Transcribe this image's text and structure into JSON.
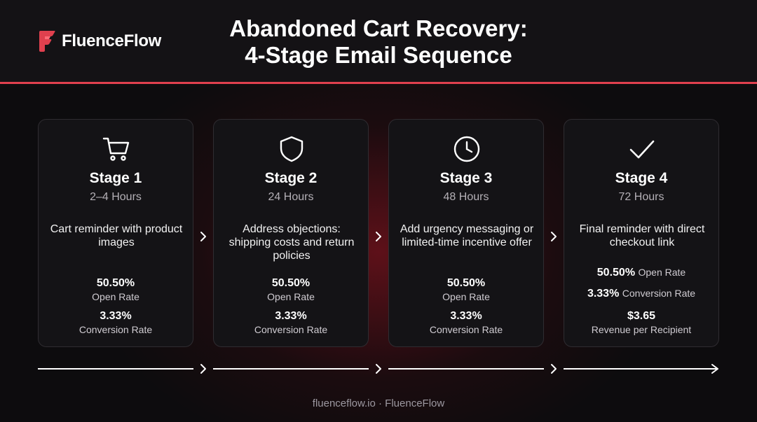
{
  "brand": {
    "name": "FluenceFlow",
    "accent": "#e0404e"
  },
  "title": {
    "line1": "Abandoned Cart Recovery:",
    "line2": "4-Stage Email Sequence"
  },
  "stages": [
    {
      "icon": "shopping-cart-icon",
      "label": "Stage 1",
      "timing": "2–4 Hours",
      "description": "Cart reminder with product images",
      "open_rate": "50.50%",
      "open_rate_label": "Open Rate",
      "conversion_rate": "3.33%",
      "conversion_rate_label": "Conversion Rate"
    },
    {
      "icon": "shield-icon",
      "label": "Stage 2",
      "timing": "24 Hours",
      "description": "Address objections: shipping costs and return policies",
      "open_rate": "50.50%",
      "open_rate_label": "Open Rate",
      "conversion_rate": "3.33%",
      "conversion_rate_label": "Conversion Rate"
    },
    {
      "icon": "clock-icon",
      "label": "Stage 3",
      "timing": "48 Hours",
      "description": "Add urgency messaging or limited-time incentive offer",
      "open_rate": "50.50%",
      "open_rate_label": "Open Rate",
      "conversion_rate": "3.33%",
      "conversion_rate_label": "Conversion Rate"
    },
    {
      "icon": "checkmark-icon",
      "label": "Stage 4",
      "timing": "72 Hours",
      "description": "Final reminder with direct checkout link",
      "open_rate": "50.50%",
      "open_rate_label": "Open Rate",
      "conversion_rate": "3.33%",
      "conversion_rate_label": "Conversion Rate",
      "revenue": "$3.65",
      "revenue_label": "Revenue per Recipient"
    }
  ],
  "footer": "fluenceflow.io · FluenceFlow"
}
